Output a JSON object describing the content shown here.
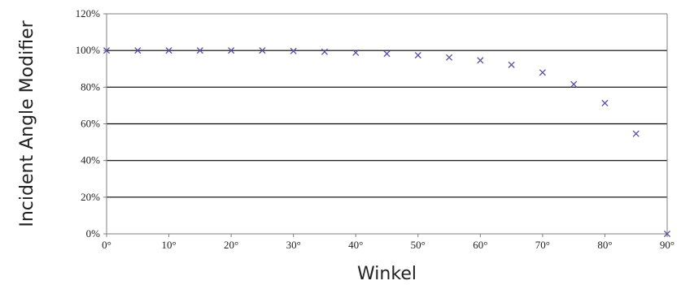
{
  "chart_data": {
    "type": "scatter",
    "title": "",
    "xlabel": "Winkel",
    "ylabel": "Incident Angle Modifier",
    "xlim": [
      0,
      90
    ],
    "ylim": [
      0,
      120
    ],
    "x_ticks": [
      "0°",
      "10°",
      "20°",
      "30°",
      "40°",
      "50°",
      "60°",
      "70°",
      "80°",
      "90°"
    ],
    "y_ticks": [
      "0%",
      "20%",
      "40%",
      "60%",
      "80%",
      "100%",
      "120%"
    ],
    "grid": "horizontal",
    "legend": "none",
    "marker": "x",
    "series": [
      {
        "x": [
          0,
          5,
          10,
          15,
          20,
          25,
          30,
          35,
          40,
          45,
          50,
          55,
          60,
          65,
          70,
          75,
          80,
          85,
          90
        ],
        "y": [
          100,
          100,
          100,
          100,
          100,
          100,
          99.7,
          99.3,
          98.8,
          98.2,
          97.4,
          96.2,
          94.6,
          92.2,
          88.0,
          81.6,
          71.3,
          54.6,
          0
        ]
      }
    ],
    "colors": {
      "marker": "#5a4fa0",
      "grid": "#000000",
      "axis": "#7f7f7f",
      "text": "#222222"
    }
  }
}
